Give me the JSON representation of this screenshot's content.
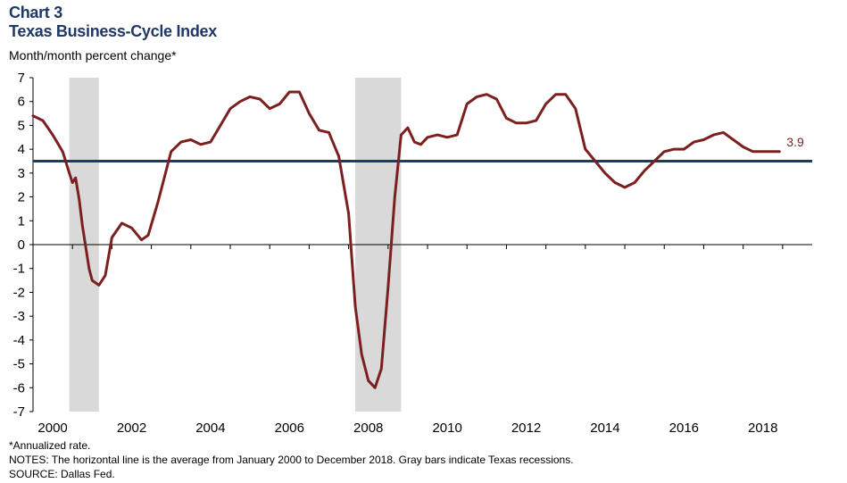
{
  "header": {
    "chart_label": "Chart 3",
    "title": "Texas Business-Cycle Index",
    "unit_label": "Month/month  percent change*"
  },
  "footnotes": {
    "annualized": "*Annualized rate.",
    "notes": "NOTES: The horizontal line is the average from January 2000 to December 2018. Gray bars indicate Texas recessions.",
    "source": "SOURCE: Dallas Fed."
  },
  "colors": {
    "series": "#7b1f1f",
    "average_line": "#1f3864",
    "recession_shade": "#d9d9d9",
    "axis": "#000000",
    "title": "#1f3864"
  },
  "chart_data": {
    "type": "line",
    "title": "Texas Business-Cycle Index",
    "ylabel": "Month/month  percent change*",
    "ylim": [
      -7,
      7
    ],
    "yticks": [
      "7",
      "6",
      "5",
      "4",
      "3",
      "2",
      "1",
      "0",
      "-1",
      "-2",
      "-3",
      "-4",
      "-5",
      "-6",
      "-7"
    ],
    "xlim": [
      2000.0,
      2019.75
    ],
    "xticks": [
      "2000",
      "2002",
      "2004",
      "2006",
      "2008",
      "2010",
      "2012",
      "2014",
      "2016",
      "2018"
    ],
    "grid": false,
    "average_line": 3.5,
    "end_label": "3.9",
    "recessions": [
      [
        2000.92,
        2001.67
      ],
      [
        2008.17,
        2009.33
      ]
    ],
    "series": [
      {
        "x": [
          2000.0,
          2000.25,
          2000.5,
          2000.75,
          2000.92,
          2001.0,
          2001.08,
          2001.17,
          2001.25,
          2001.42,
          2001.5,
          2001.67,
          2001.83,
          2002.0,
          2002.25,
          2002.5,
          2002.75,
          2002.92,
          2003.17,
          2003.5,
          2003.75,
          2004.0,
          2004.25,
          2004.5,
          2004.75,
          2005.0,
          2005.25,
          2005.5,
          2005.75,
          2006.0,
          2006.25,
          2006.5,
          2006.75,
          2007.0,
          2007.25,
          2007.5,
          2007.75,
          2008.0,
          2008.17,
          2008.33,
          2008.5,
          2008.67,
          2008.83,
          2009.0,
          2009.17,
          2009.33,
          2009.5,
          2009.67,
          2009.83,
          2010.0,
          2010.25,
          2010.5,
          2010.75,
          2011.0,
          2011.25,
          2011.5,
          2011.75,
          2012.0,
          2012.25,
          2012.5,
          2012.75,
          2013.0,
          2013.25,
          2013.5,
          2013.75,
          2014.0,
          2014.25,
          2014.5,
          2014.75,
          2015.0,
          2015.25,
          2015.5,
          2015.75,
          2016.0,
          2016.25,
          2016.5,
          2016.75,
          2017.0,
          2017.25,
          2017.5,
          2017.75,
          2018.0,
          2018.25,
          2018.5,
          2018.75,
          2018.92
        ],
        "y": [
          5.4,
          5.2,
          4.6,
          3.9,
          3.0,
          2.6,
          2.8,
          1.9,
          0.8,
          -1.0,
          -1.5,
          -1.7,
          -1.3,
          0.3,
          0.9,
          0.7,
          0.2,
          0.4,
          1.8,
          3.9,
          4.3,
          4.4,
          4.2,
          4.3,
          5.0,
          5.7,
          6.0,
          6.2,
          6.1,
          5.7,
          5.9,
          6.4,
          6.4,
          5.5,
          4.8,
          4.7,
          3.7,
          1.3,
          -2.6,
          -4.6,
          -5.7,
          -6.0,
          -5.2,
          -1.8,
          2.0,
          4.6,
          4.9,
          4.3,
          4.2,
          4.5,
          4.6,
          4.5,
          4.6,
          5.9,
          6.2,
          6.3,
          6.1,
          5.3,
          5.1,
          5.1,
          5.2,
          5.9,
          6.3,
          6.3,
          5.7,
          4.0,
          3.5,
          3.0,
          2.6,
          2.4,
          2.6,
          3.1,
          3.5,
          3.9,
          4.0,
          4.0,
          4.3,
          4.4,
          4.6,
          4.7,
          4.4,
          4.1,
          3.9,
          3.9,
          3.9,
          3.9
        ]
      }
    ]
  }
}
